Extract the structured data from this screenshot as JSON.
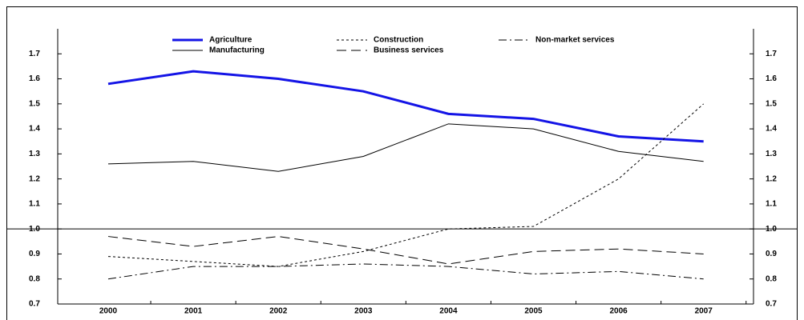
{
  "chart_data": {
    "type": "line",
    "categories": [
      "2000",
      "2001",
      "2002",
      "2003",
      "2004",
      "2005",
      "2006",
      "2007"
    ],
    "series": [
      {
        "name": "Agriculture",
        "color": "#1414e6",
        "width": 3,
        "dash": "solid",
        "values": [
          1.58,
          1.63,
          1.6,
          1.55,
          1.46,
          1.44,
          1.37,
          1.35
        ]
      },
      {
        "name": "Manufacturing",
        "color": "#000000",
        "width": 1,
        "dash": "solid",
        "values": [
          1.26,
          1.27,
          1.23,
          1.29,
          1.42,
          1.4,
          1.31,
          1.27
        ]
      },
      {
        "name": "Construction",
        "color": "#000000",
        "width": 1,
        "dash": "dotted",
        "values": [
          0.89,
          0.87,
          0.85,
          0.91,
          1.0,
          1.01,
          1.2,
          1.5
        ]
      },
      {
        "name": "Business services",
        "color": "#000000",
        "width": 1,
        "dash": "dashed",
        "values": [
          0.97,
          0.93,
          0.97,
          0.92,
          0.86,
          0.91,
          0.92,
          0.9
        ]
      },
      {
        "name": "Non-market services",
        "color": "#000000",
        "width": 1,
        "dash": "dashdot",
        "values": [
          0.8,
          0.85,
          0.85,
          0.86,
          0.85,
          0.82,
          0.83,
          0.8
        ]
      }
    ],
    "ylim": [
      0.7,
      1.8
    ],
    "yticks": [
      0.7,
      0.8,
      0.9,
      {
        "value": 1,
        "label": "1.0"
      },
      1.1,
      1.2,
      1.3,
      1.4,
      1.5,
      1.6,
      1.7
    ],
    "reference_line": 1,
    "grid": false
  }
}
